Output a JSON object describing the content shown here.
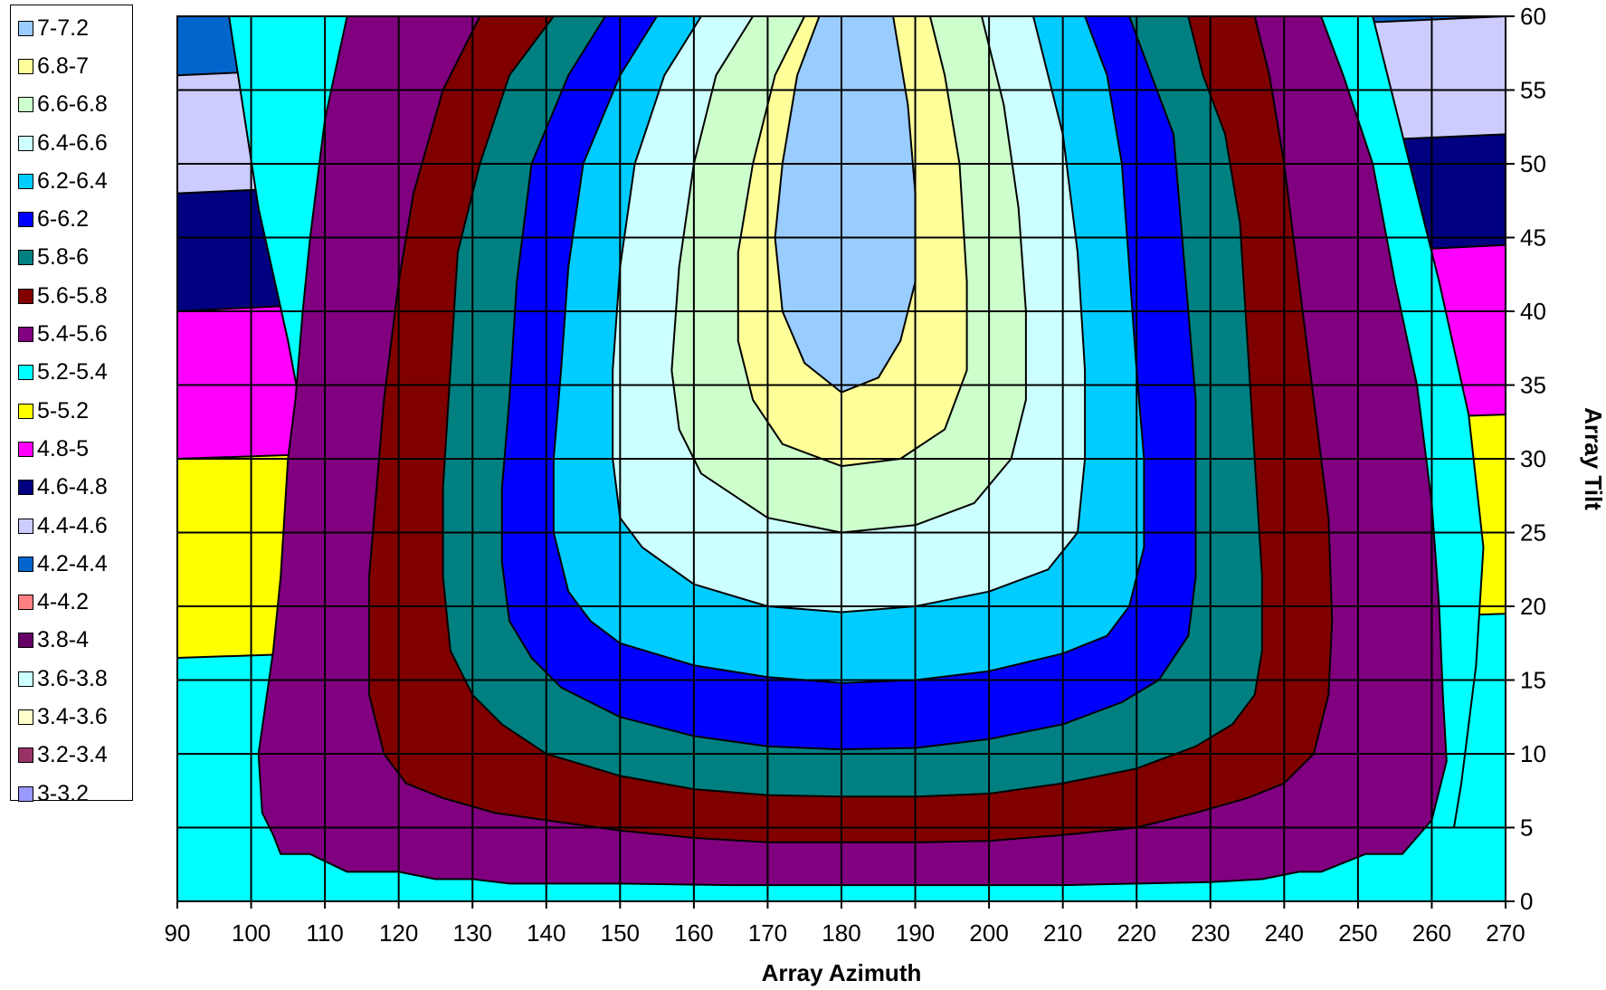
{
  "chart_data": {
    "type": "contour",
    "xlabel": "Array Azimuth",
    "ylabel": "Array Tilt",
    "xlim": [
      90,
      270
    ],
    "ylim": [
      0,
      60
    ],
    "x_ticks": [
      "90",
      "100",
      "110",
      "120",
      "130",
      "140",
      "150",
      "160",
      "170",
      "180",
      "190",
      "200",
      "210",
      "220",
      "230",
      "240",
      "250",
      "260",
      "270"
    ],
    "y_ticks": [
      "0",
      "5",
      "10",
      "15",
      "20",
      "25",
      "30",
      "35",
      "40",
      "45",
      "50",
      "55",
      "60"
    ],
    "grid": true,
    "legend_position": "left",
    "legend": [
      {
        "label": "7-7.2",
        "color": "#99CCFF"
      },
      {
        "label": "6.8-7",
        "color": "#FFFF99"
      },
      {
        "label": "6.6-6.8",
        "color": "#CCFFCC"
      },
      {
        "label": "6.4-6.6",
        "color": "#CCFFFF"
      },
      {
        "label": "6.2-6.4",
        "color": "#00CCFF"
      },
      {
        "label": "6-6.2",
        "color": "#0000FF"
      },
      {
        "label": "5.8-6",
        "color": "#008080"
      },
      {
        "label": "5.6-5.8",
        "color": "#800000"
      },
      {
        "label": "5.4-5.6",
        "color": "#800080"
      },
      {
        "label": "5.2-5.4",
        "color": "#00FFFF"
      },
      {
        "label": "5-5.2",
        "color": "#FFFF00"
      },
      {
        "label": "4.8-5",
        "color": "#FF00FF"
      },
      {
        "label": "4.6-4.8",
        "color": "#000080"
      },
      {
        "label": "4.4-4.6",
        "color": "#CCCCFF"
      },
      {
        "label": "4.2-4.4",
        "color": "#0066CC"
      },
      {
        "label": "4-4.2",
        "color": "#FF8080"
      },
      {
        "label": "3.8-4",
        "color": "#660066"
      },
      {
        "label": "3.6-3.8",
        "color": "#CCFFFF"
      },
      {
        "label": "3.4-3.6",
        "color": "#FFFFCC"
      },
      {
        "label": "3.2-3.4",
        "color": "#993366"
      },
      {
        "label": "3-3.2",
        "color": "#9999FF"
      }
    ],
    "bands": [
      {
        "range": "5.2-5.4",
        "color": "#00FFFF",
        "polygon": []
      },
      {
        "range": "5-5.2",
        "color": "#FFFF00",
        "polygon": [
          [
            90,
            16.5
          ],
          [
            90,
            60
          ],
          [
            270,
            60
          ],
          [
            270,
            19.5
          ]
        ]
      },
      {
        "range": "4.8-5",
        "color": "#FF00FF",
        "polygon": [
          [
            90,
            30
          ],
          [
            90,
            60
          ],
          [
            270,
            60
          ],
          [
            270,
            33
          ]
        ]
      },
      {
        "range": "4.6-4.8",
        "color": "#000080",
        "polygon": [
          [
            90,
            40
          ],
          [
            90,
            60
          ],
          [
            270,
            60
          ],
          [
            270,
            44.5
          ]
        ]
      },
      {
        "range": "4.4-4.6",
        "color": "#CCCCFF",
        "polygon": [
          [
            90,
            48
          ],
          [
            90,
            60
          ],
          [
            270,
            60
          ],
          [
            270,
            52
          ]
        ]
      },
      {
        "range": "4.2-4.4",
        "color": "#0066CC",
        "polygon": [
          [
            90,
            56
          ],
          [
            90,
            60
          ],
          [
            270,
            60
          ]
        ]
      },
      {
        "range": "5.2-5.4",
        "color": "#00FFFF",
        "polygon": [
          [
            97,
            60
          ],
          [
            101,
            47
          ],
          [
            105,
            38
          ],
          [
            108,
            30
          ],
          [
            111,
            22
          ],
          [
            114,
            15
          ],
          [
            116,
            8
          ],
          [
            118,
            2
          ],
          [
            262,
            2
          ],
          [
            264,
            8
          ],
          [
            266,
            16
          ],
          [
            267,
            24
          ],
          [
            265,
            33
          ],
          [
            261,
            42
          ],
          [
            257,
            50
          ],
          [
            252,
            60
          ]
        ]
      },
      {
        "range": "5.2-5.4",
        "color": "#00FFFF",
        "polygon": [
          [
            90,
            0
          ],
          [
            90,
            5
          ],
          [
            270,
            5
          ],
          [
            270,
            0
          ]
        ]
      },
      {
        "range": "5.4-5.6",
        "color": "#800080",
        "polygon": [
          [
            113,
            60
          ],
          [
            110,
            53
          ],
          [
            108,
            45
          ],
          [
            107,
            40
          ],
          [
            106,
            34
          ],
          [
            105,
            30
          ],
          [
            104,
            22
          ],
          [
            103,
            17
          ],
          [
            101,
            10
          ],
          [
            101.5,
            6
          ],
          [
            103,
            4.5
          ],
          [
            104,
            3.2
          ],
          [
            108,
            3.2
          ],
          [
            113,
            2
          ],
          [
            120,
            2
          ],
          [
            125,
            1.5
          ],
          [
            130,
            1.5
          ],
          [
            135,
            1.2
          ],
          [
            150,
            1.2
          ],
          [
            165,
            1.1
          ],
          [
            180,
            1.1
          ],
          [
            195,
            1.1
          ],
          [
            210,
            1.1
          ],
          [
            220,
            1.2
          ],
          [
            230,
            1.3
          ],
          [
            237,
            1.5
          ],
          [
            242,
            2
          ],
          [
            245,
            2
          ],
          [
            251,
            3.2
          ],
          [
            256,
            3.2
          ],
          [
            260,
            5.5
          ],
          [
            262,
            9.5
          ],
          [
            261.5,
            14
          ],
          [
            261,
            20
          ],
          [
            260,
            27
          ],
          [
            258,
            35
          ],
          [
            255,
            42
          ],
          [
            252,
            50
          ],
          [
            248,
            56
          ],
          [
            245,
            60
          ]
        ]
      },
      {
        "range": "5.6-5.8",
        "color": "#800000",
        "polygon": [
          [
            131,
            60
          ],
          [
            126,
            55
          ],
          [
            122,
            48
          ],
          [
            120,
            42
          ],
          [
            118,
            34
          ],
          [
            117,
            28
          ],
          [
            116,
            22
          ],
          [
            116,
            14
          ],
          [
            118,
            10
          ],
          [
            121,
            8
          ],
          [
            126,
            7
          ],
          [
            133,
            6
          ],
          [
            140,
            5.5
          ],
          [
            150,
            4.8
          ],
          [
            160,
            4.3
          ],
          [
            170,
            4
          ],
          [
            180,
            4
          ],
          [
            190,
            4
          ],
          [
            200,
            4.1
          ],
          [
            210,
            4.5
          ],
          [
            220,
            5
          ],
          [
            228,
            6
          ],
          [
            235,
            7
          ],
          [
            240,
            8
          ],
          [
            244,
            10
          ],
          [
            246,
            14
          ],
          [
            246.5,
            19
          ],
          [
            246,
            26
          ],
          [
            244,
            34
          ],
          [
            242,
            42
          ],
          [
            240,
            50
          ],
          [
            238,
            56
          ],
          [
            236,
            60
          ]
        ]
      },
      {
        "range": "5.8-6",
        "color": "#008080",
        "polygon": [
          [
            141,
            60
          ],
          [
            135,
            56
          ],
          [
            131,
            50
          ],
          [
            128,
            44
          ],
          [
            127,
            36
          ],
          [
            126,
            28
          ],
          [
            126,
            22
          ],
          [
            127,
            17
          ],
          [
            130,
            14
          ],
          [
            134,
            12
          ],
          [
            140,
            10
          ],
          [
            150,
            8.5
          ],
          [
            160,
            7.6
          ],
          [
            170,
            7.2
          ],
          [
            180,
            7.1
          ],
          [
            190,
            7.1
          ],
          [
            200,
            7.3
          ],
          [
            210,
            8
          ],
          [
            220,
            9
          ],
          [
            228,
            10.5
          ],
          [
            233,
            12
          ],
          [
            236,
            14
          ],
          [
            237,
            17
          ],
          [
            237,
            22
          ],
          [
            236,
            30
          ],
          [
            235,
            38
          ],
          [
            234,
            46
          ],
          [
            232,
            52
          ],
          [
            229,
            56
          ],
          [
            227,
            60
          ]
        ]
      },
      {
        "range": "6-6.2",
        "color": "#0000FF",
        "polygon": [
          [
            148,
            60
          ],
          [
            143,
            56
          ],
          [
            138,
            50
          ],
          [
            136,
            42
          ],
          [
            135,
            34
          ],
          [
            134,
            28
          ],
          [
            134,
            23
          ],
          [
            135,
            19
          ],
          [
            138,
            16.5
          ],
          [
            142,
            14.5
          ],
          [
            150,
            12.5
          ],
          [
            160,
            11.2
          ],
          [
            170,
            10.5
          ],
          [
            180,
            10.3
          ],
          [
            190,
            10.4
          ],
          [
            200,
            11
          ],
          [
            210,
            12
          ],
          [
            218,
            13.5
          ],
          [
            223,
            15
          ],
          [
            227,
            18
          ],
          [
            228,
            22
          ],
          [
            228,
            28
          ],
          [
            228,
            34
          ],
          [
            227,
            40
          ],
          [
            226,
            46
          ],
          [
            225,
            52
          ],
          [
            222,
            56
          ],
          [
            219,
            60
          ]
        ]
      },
      {
        "range": "6.2-6.4",
        "color": "#00CCFF",
        "polygon": [
          [
            155,
            60
          ],
          [
            150,
            56
          ],
          [
            145,
            50
          ],
          [
            143,
            43
          ],
          [
            142,
            36
          ],
          [
            141,
            30
          ],
          [
            141,
            25
          ],
          [
            143,
            21
          ],
          [
            146,
            19
          ],
          [
            150,
            17.5
          ],
          [
            160,
            16
          ],
          [
            170,
            15.2
          ],
          [
            180,
            14.8
          ],
          [
            190,
            15
          ],
          [
            200,
            15.6
          ],
          [
            210,
            16.8
          ],
          [
            216,
            18
          ],
          [
            219,
            20
          ],
          [
            221,
            24
          ],
          [
            221,
            30
          ],
          [
            220,
            36
          ],
          [
            219,
            43
          ],
          [
            218,
            50
          ],
          [
            216,
            56
          ],
          [
            213,
            60
          ]
        ]
      },
      {
        "range": "6.4-6.6",
        "color": "#CCFFFF",
        "polygon": [
          [
            161,
            60
          ],
          [
            156,
            56
          ],
          [
            152,
            50
          ],
          [
            150,
            43
          ],
          [
            149,
            36
          ],
          [
            149,
            30
          ],
          [
            150,
            26
          ],
          [
            153,
            24
          ],
          [
            160,
            21.5
          ],
          [
            170,
            20
          ],
          [
            180,
            19.6
          ],
          [
            190,
            20
          ],
          [
            200,
            21
          ],
          [
            208,
            22.5
          ],
          [
            212,
            25
          ],
          [
            213,
            30
          ],
          [
            213,
            36
          ],
          [
            212,
            44
          ],
          [
            210,
            52
          ],
          [
            208,
            56
          ],
          [
            206,
            60
          ]
        ]
      },
      {
        "range": "6.6-6.8",
        "color": "#CCFFCC",
        "polygon": [
          [
            168,
            60
          ],
          [
            163,
            56
          ],
          [
            160,
            50
          ],
          [
            158,
            43
          ],
          [
            157,
            36
          ],
          [
            158,
            32
          ],
          [
            161,
            29
          ],
          [
            170,
            26
          ],
          [
            180,
            25
          ],
          [
            190,
            25.5
          ],
          [
            198,
            27
          ],
          [
            203,
            30
          ],
          [
            205,
            34
          ],
          [
            205,
            40
          ],
          [
            204,
            47
          ],
          [
            202,
            54
          ],
          [
            199,
            60
          ]
        ]
      },
      {
        "range": "6.8-7",
        "color": "#FFFF99",
        "polygon": [
          [
            175,
            60
          ],
          [
            171,
            56
          ],
          [
            168,
            50
          ],
          [
            166,
            44
          ],
          [
            166,
            38
          ],
          [
            168,
            34
          ],
          [
            172,
            31
          ],
          [
            180,
            29.5
          ],
          [
            188,
            30
          ],
          [
            194,
            32
          ],
          [
            197,
            36
          ],
          [
            197,
            42
          ],
          [
            196,
            50
          ],
          [
            194,
            56
          ],
          [
            192,
            60
          ]
        ]
      },
      {
        "range": "7-7.2",
        "color": "#99CCFF",
        "polygon": [
          [
            177,
            60
          ],
          [
            174,
            56
          ],
          [
            172,
            50
          ],
          [
            171,
            45
          ],
          [
            172,
            40
          ],
          [
            175,
            36.5
          ],
          [
            180,
            34.5
          ],
          [
            185,
            35.5
          ],
          [
            188,
            38
          ],
          [
            190,
            42
          ],
          [
            190,
            48
          ],
          [
            189,
            54
          ],
          [
            187,
            60
          ]
        ]
      }
    ]
  }
}
